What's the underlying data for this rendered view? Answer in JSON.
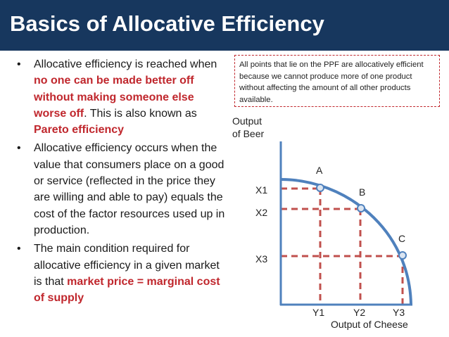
{
  "header": {
    "title": "Basics of Allocative Efficiency"
  },
  "bullets": [
    {
      "marker": "•",
      "parts": [
        {
          "text": "Allocative efficiency is reached when ",
          "style": "normal"
        },
        {
          "text": "no one can be made better off without making someone else worse off",
          "style": "red"
        },
        {
          "text": ". This is also known as ",
          "style": "normal"
        },
        {
          "text": "Pareto efficiency",
          "style": "red"
        }
      ]
    },
    {
      "marker": "•",
      "parts": [
        {
          "text": "Allocative efficiency occurs when the value that consumers place on a good or service (reflected in the price they are willing and able to pay) equals the cost of the factor resources used up in production.",
          "style": "normal"
        }
      ]
    },
    {
      "marker": "•",
      "parts": [
        {
          "text": "The main condition required for allocative efficiency in a given market is that ",
          "style": "normal"
        },
        {
          "text": "market price = marginal cost of supply",
          "style": "red"
        }
      ]
    }
  ],
  "note": {
    "text": "All points that lie on the PPF are allocatively efficient because we cannot produce more of one product without affecting the amount of all other products available."
  },
  "diagram": {
    "y_axis_label_line1": "Output",
    "y_axis_label_line2": "of Beer",
    "x_axis_label": "Output of Cheese",
    "points": [
      {
        "label": "A",
        "y_label": "X1",
        "x_label": "Y1"
      },
      {
        "label": "B",
        "y_label": "X2",
        "x_label": "Y2"
      },
      {
        "label": "C",
        "y_label": "X3",
        "x_label": "Y3"
      }
    ],
    "colors": {
      "curve": "#4f81bd",
      "dashes": "#c0504d",
      "axis": "#4f81bd",
      "title_bar": "#17375e",
      "emphasis": "#c0272d"
    }
  }
}
